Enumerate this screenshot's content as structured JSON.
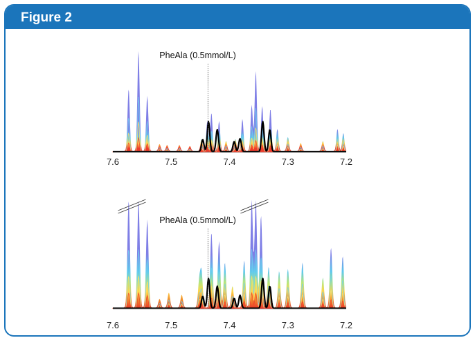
{
  "figure": {
    "title": "Figure 2"
  },
  "colors": {
    "accent": "#1b75bb",
    "spectra_top": "#7f7fe6",
    "overlay_line": "#000000"
  },
  "chart_data": [
    {
      "type": "line",
      "title": "",
      "xlabel": "",
      "ylabel": "",
      "x_axis_reversed": true,
      "xlim": [
        7.6,
        7.2
      ],
      "x_ticks": [
        "7.6",
        "7.5",
        "7.4",
        "7.3",
        "7.2"
      ],
      "annotation": {
        "text": "PheAla (0.5mmol/L)",
        "x": 7.437
      },
      "break_marks": [],
      "series": [
        {
          "style": "stacked-colored-spectra",
          "peaks": [
            {
              "x": 7.573,
              "height": 0.62
            },
            {
              "x": 7.556,
              "height": 1.0
            },
            {
              "x": 7.541,
              "height": 0.55
            },
            {
              "x": 7.52,
              "height": 0.07
            },
            {
              "x": 7.507,
              "height": 0.06
            },
            {
              "x": 7.486,
              "height": 0.06
            },
            {
              "x": 7.468,
              "height": 0.05
            },
            {
              "x": 7.448,
              "height": 0.12
            },
            {
              "x": 7.438,
              "height": 0.3
            },
            {
              "x": 7.431,
              "height": 0.38
            },
            {
              "x": 7.418,
              "height": 0.3
            },
            {
              "x": 7.406,
              "height": 0.1
            },
            {
              "x": 7.39,
              "height": 0.12
            },
            {
              "x": 7.378,
              "height": 0.32
            },
            {
              "x": 7.362,
              "height": 0.46
            },
            {
              "x": 7.355,
              "height": 0.8
            },
            {
              "x": 7.344,
              "height": 0.45
            },
            {
              "x": 7.33,
              "height": 0.42
            },
            {
              "x": 7.318,
              "height": 0.22
            },
            {
              "x": 7.3,
              "height": 0.14
            },
            {
              "x": 7.278,
              "height": 0.08
            },
            {
              "x": 7.24,
              "height": 0.1
            },
            {
              "x": 7.215,
              "height": 0.22
            },
            {
              "x": 7.205,
              "height": 0.18
            }
          ]
        },
        {
          "style": "overlay-line",
          "peaks": [
            {
              "x": 7.446,
              "height": 0.12
            },
            {
              "x": 7.436,
              "height": 0.3
            },
            {
              "x": 7.421,
              "height": 0.22
            },
            {
              "x": 7.392,
              "height": 0.1
            },
            {
              "x": 7.382,
              "height": 0.13
            },
            {
              "x": 7.343,
              "height": 0.3
            },
            {
              "x": 7.331,
              "height": 0.22
            }
          ]
        }
      ]
    },
    {
      "type": "line",
      "title": "",
      "xlabel": "",
      "ylabel": "",
      "x_axis_reversed": true,
      "xlim": [
        7.6,
        7.2
      ],
      "x_ticks": [
        "7.6",
        "7.5",
        "7.4",
        "7.3",
        "7.2"
      ],
      "annotation": {
        "text": "PheAla (0.5mmol/L)",
        "x": 7.437
      },
      "break_marks": [
        7.565,
        7.355
      ],
      "series": [
        {
          "style": "stacked-colored-spectra",
          "peaks": [
            {
              "x": 7.573,
              "height": 1.0
            },
            {
              "x": 7.556,
              "height": 1.0
            },
            {
              "x": 7.541,
              "height": 0.82
            },
            {
              "x": 7.52,
              "height": 0.08
            },
            {
              "x": 7.504,
              "height": 0.14
            },
            {
              "x": 7.482,
              "height": 0.12
            },
            {
              "x": 7.452,
              "height": 0.24
            },
            {
              "x": 7.448,
              "height": 0.32
            },
            {
              "x": 7.431,
              "height": 0.7
            },
            {
              "x": 7.418,
              "height": 0.62
            },
            {
              "x": 7.408,
              "height": 0.42
            },
            {
              "x": 7.395,
              "height": 0.2
            },
            {
              "x": 7.375,
              "height": 0.44
            },
            {
              "x": 7.362,
              "height": 1.0
            },
            {
              "x": 7.355,
              "height": 1.0
            },
            {
              "x": 7.346,
              "height": 0.86
            },
            {
              "x": 7.333,
              "height": 0.38
            },
            {
              "x": 7.315,
              "height": 0.34
            },
            {
              "x": 7.3,
              "height": 0.36
            },
            {
              "x": 7.275,
              "height": 0.42
            },
            {
              "x": 7.24,
              "height": 0.28
            },
            {
              "x": 7.226,
              "height": 0.56
            },
            {
              "x": 7.206,
              "height": 0.48
            }
          ]
        },
        {
          "style": "overlay-line",
          "peaks": [
            {
              "x": 7.446,
              "height": 0.12
            },
            {
              "x": 7.436,
              "height": 0.3
            },
            {
              "x": 7.421,
              "height": 0.22
            },
            {
              "x": 7.392,
              "height": 0.1
            },
            {
              "x": 7.382,
              "height": 0.13
            },
            {
              "x": 7.343,
              "height": 0.3
            },
            {
              "x": 7.331,
              "height": 0.22
            }
          ]
        }
      ]
    }
  ]
}
